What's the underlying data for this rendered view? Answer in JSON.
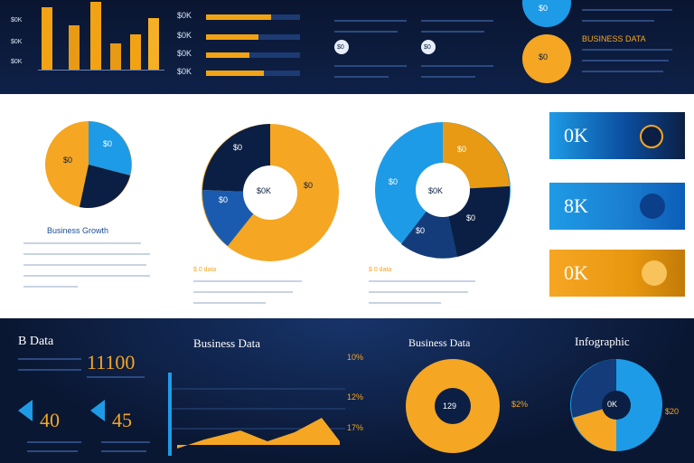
{
  "top": {
    "y_ticks": [
      "$0K",
      "$0K",
      "$0K"
    ],
    "bar_values": [
      0.95,
      0.7,
      0.98,
      0.4,
      0.55,
      0.75
    ],
    "hbars": [
      {
        "label": "$0K",
        "fill": 0.7
      },
      {
        "label": "$0K",
        "fill": 0.55
      },
      {
        "label": "$0K",
        "fill": 0.45
      },
      {
        "label": "$0K",
        "fill": 0.6
      }
    ],
    "bubble_1": "$0",
    "bubble_2": "$0",
    "circle_blue": "$0",
    "circle_gold": "$0",
    "header_right": "BUSINESS DATA"
  },
  "mid": {
    "pie1": {
      "label_a": "$0",
      "label_b": "$0",
      "caption": "Business Growth"
    },
    "pie2": {
      "label_a": "$0",
      "label_b": "$0",
      "label_c": "$0",
      "label_center": "$0K"
    },
    "pie3": {
      "label_a": "$0",
      "label_b": "$0",
      "label_c": "$0K",
      "label_d": "$0",
      "label_e": "$0"
    },
    "pie2_caption": "$ 0 data",
    "pie3_caption": "$ 0 data",
    "tags": [
      "0K",
      "8K",
      "0K"
    ]
  },
  "bot": {
    "title_left": "B Data",
    "big_num": "11100",
    "num_a": "40",
    "num_b": "45",
    "title_mid": "Business Data",
    "pct": [
      "10%",
      "12%",
      "17%"
    ],
    "title_right1": "Business Data",
    "donut_center": "129",
    "donut_side": "$2%",
    "title_right2": "Infographic",
    "pie_center": "0K",
    "pie_side": "$20"
  },
  "colors": {
    "gold": "#f5a623",
    "blue": "#1e9be6",
    "navy": "#0b1f44"
  }
}
